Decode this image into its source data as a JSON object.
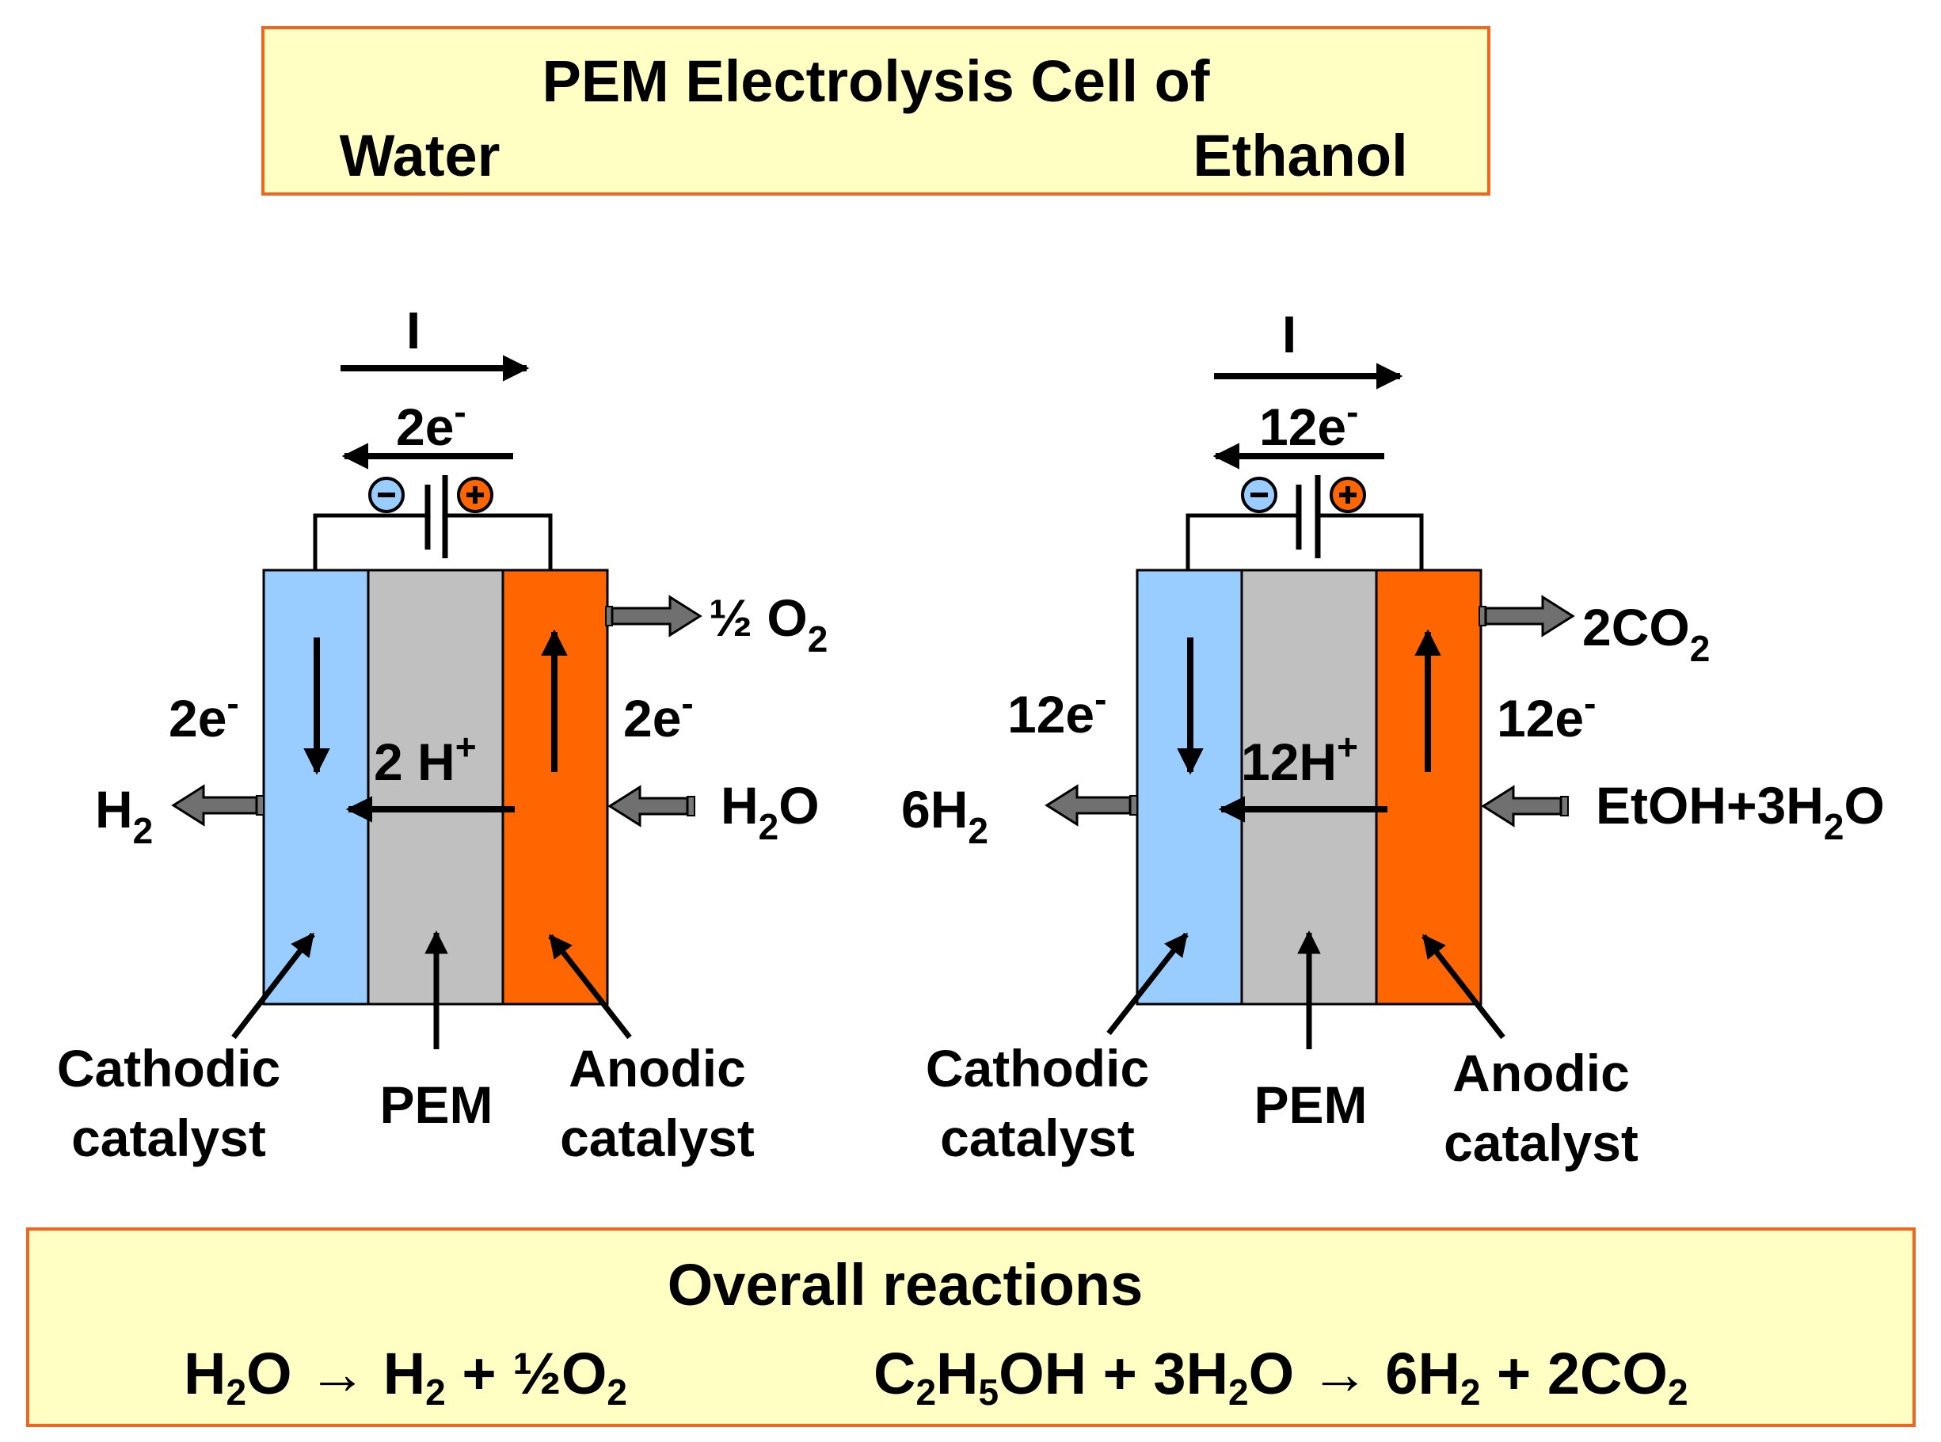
{
  "title": {
    "line1": "PEM Electrolysis Cell of",
    "left": "Water",
    "right": "Ethanol"
  },
  "colors": {
    "box_fill": "#FFFFC4",
    "box_border": "#F2651F",
    "cathode": "#99CCFF",
    "membrane": "#C0C0C0",
    "anode": "#FF6600",
    "gas_arrow": "#707070",
    "minus_terminal": "#99CCFF",
    "plus_terminal": "#FF6600"
  },
  "water_cell": {
    "current": "I",
    "electrons_top": {
      "base": "2e",
      "sup": "-"
    },
    "electrons_left": {
      "base": "2e",
      "sup": "-"
    },
    "electrons_right": {
      "base": "2e",
      "sup": "-"
    },
    "protons": {
      "base": "2 H",
      "sup": "+"
    },
    "product_anode": {
      "pre": "½ O",
      "sub": "2"
    },
    "product_cathode": {
      "base": "H",
      "sub": "2"
    },
    "feed": {
      "base": "H",
      "sub": "2",
      "post": "O"
    },
    "cathode_label": [
      "Cathodic",
      "catalyst"
    ],
    "membrane_label": "PEM",
    "anode_label": [
      "Anodic",
      "catalyst"
    ],
    "minus_icon": "minus-circle-icon",
    "plus_icon": "plus-circle-icon"
  },
  "ethanol_cell": {
    "current": "I",
    "electrons_top": {
      "base": "12e",
      "sup": "-"
    },
    "electrons_left": {
      "base": "12e",
      "sup": "-"
    },
    "electrons_right": {
      "base": "12e",
      "sup": "-"
    },
    "protons": {
      "base": "12H",
      "sup": "+"
    },
    "product_anode": {
      "pre": "2CO",
      "sub": "2"
    },
    "product_cathode": {
      "pre": "6H",
      "sub": "2"
    },
    "feed": {
      "pre": "EtOH+3H",
      "sub": "2",
      "post": "O"
    },
    "cathode_label": [
      "Cathodic",
      "catalyst"
    ],
    "membrane_label": "PEM",
    "anode_label": [
      "Anodic",
      "catalyst"
    ],
    "minus_icon": "minus-circle-icon",
    "plus_icon": "plus-circle-icon"
  },
  "overall": {
    "title": "Overall reactions",
    "water_reaction": {
      "p1": "H",
      "s1": "2",
      "p2": "O → H",
      "s2": "2",
      "p3": " + ½O",
      "s3": "2"
    },
    "ethanol_reaction": {
      "p1": "C",
      "s1": "2",
      "p2": "H",
      "s2": "5",
      "p3": "OH + 3H",
      "s3": "2",
      "p4": "O → 6H",
      "s4": "2",
      "p5": " + 2CO",
      "s5": "2"
    }
  }
}
